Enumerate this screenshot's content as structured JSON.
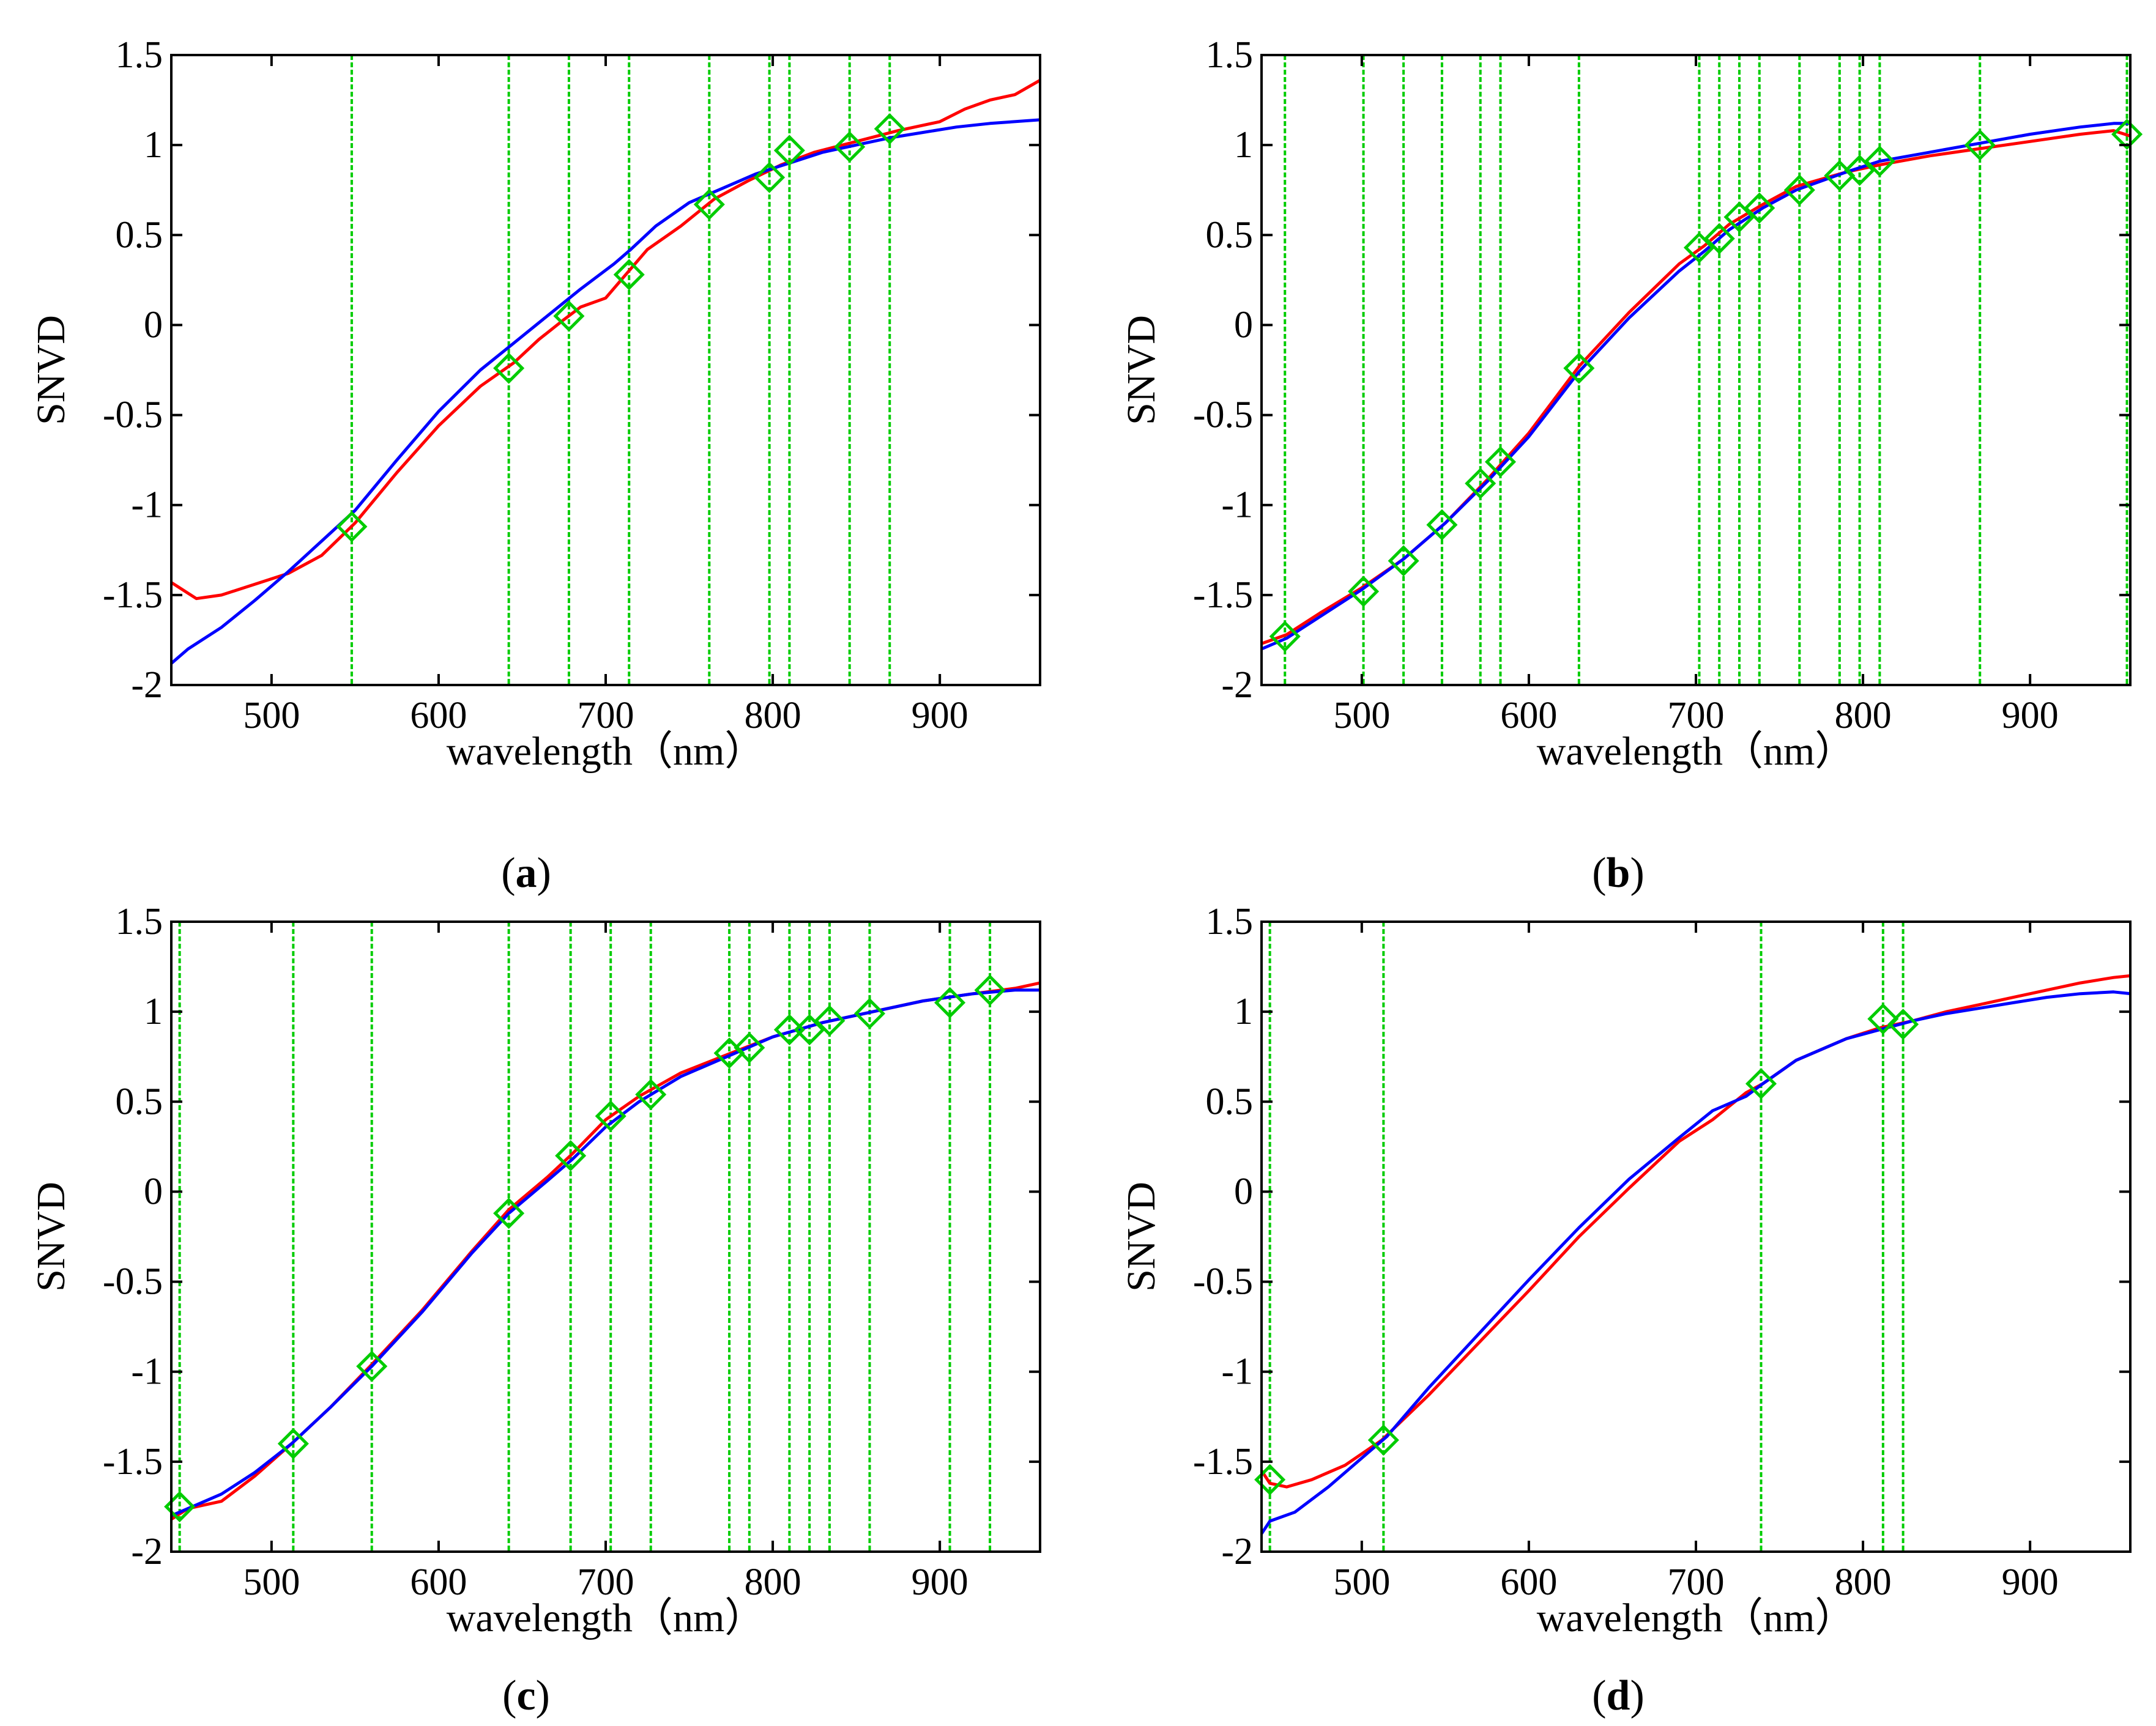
{
  "figure": {
    "panels": [
      {
        "id": "a",
        "caption_open": "(",
        "caption_letter": "a",
        "caption_close": ")"
      },
      {
        "id": "b",
        "caption_open": "(",
        "caption_letter": "b",
        "caption_close": ")"
      },
      {
        "id": "c",
        "caption_open": "(",
        "caption_letter": "c",
        "caption_close": ")"
      },
      {
        "id": "d",
        "caption_open": "(",
        "caption_letter": "d",
        "caption_close": ")"
      }
    ]
  },
  "colors": {
    "series_red": "#ff0000",
    "series_blue": "#0000ff",
    "marker_green": "#00cc00",
    "axis": "#000000"
  },
  "chart_data": [
    {
      "panel": "a",
      "type": "line",
      "title": "",
      "xlabel": "wavelength（nm）",
      "ylabel": "SNVD",
      "xlim": [
        440,
        960
      ],
      "ylim": [
        -2,
        1.5
      ],
      "xticks": [
        500,
        600,
        700,
        800,
        900
      ],
      "yticks": [
        -2,
        -1.5,
        -1,
        -0.5,
        0,
        0.5,
        1,
        1.5
      ],
      "ytick_labels": [
        "-2",
        "-1.5",
        "-1",
        "-0.5",
        "0",
        "0.5",
        "1",
        "1.5"
      ],
      "grid": false,
      "series": [
        {
          "name": "red",
          "color": "#ff0000",
          "x": [
            440,
            445,
            455,
            470,
            490,
            510,
            530,
            550,
            575,
            600,
            625,
            645,
            660,
            675,
            685,
            700,
            712,
            725,
            745,
            765,
            785,
            805,
            825,
            850,
            875,
            900,
            915,
            930,
            945,
            960
          ],
          "y": [
            -1.43,
            -1.46,
            -1.52,
            -1.5,
            -1.44,
            -1.38,
            -1.28,
            -1.1,
            -0.82,
            -0.56,
            -0.34,
            -0.21,
            -0.08,
            0.03,
            0.1,
            0.15,
            0.28,
            0.42,
            0.55,
            0.7,
            0.8,
            0.89,
            0.96,
            1.02,
            1.08,
            1.13,
            1.2,
            1.25,
            1.28,
            1.36
          ]
        },
        {
          "name": "blue",
          "color": "#0000ff",
          "x": [
            440,
            450,
            470,
            490,
            510,
            530,
            550,
            575,
            600,
            625,
            645,
            665,
            685,
            705,
            715,
            730,
            750,
            770,
            790,
            810,
            830,
            850,
            870,
            890,
            910,
            930,
            960
          ],
          "y": [
            -1.88,
            -1.8,
            -1.68,
            -1.53,
            -1.37,
            -1.2,
            -1.03,
            -0.75,
            -0.48,
            -0.25,
            -0.1,
            0.05,
            0.2,
            0.34,
            0.42,
            0.55,
            0.68,
            0.76,
            0.84,
            0.9,
            0.96,
            1.0,
            1.04,
            1.07,
            1.1,
            1.12,
            1.14
          ]
        }
      ],
      "selected_wavelengths": [
        548,
        642,
        678,
        714,
        762,
        798,
        810,
        846,
        870
      ],
      "marker_values": [
        -1.12,
        -0.24,
        0.05,
        0.28,
        0.67,
        0.82,
        0.97,
        0.99,
        1.09
      ]
    },
    {
      "panel": "b",
      "type": "line",
      "title": "",
      "xlabel": "wavelength（nm）",
      "ylabel": "SNVD",
      "xlim": [
        440,
        960
      ],
      "ylim": [
        -2,
        1.5
      ],
      "xticks": [
        500,
        600,
        700,
        800,
        900
      ],
      "yticks": [
        -2,
        -1.5,
        -1,
        -0.5,
        0,
        0.5,
        1,
        1.5
      ],
      "ytick_labels": [
        "-2",
        "-1.5",
        "-1",
        "-0.5",
        "0",
        "0.5",
        "1",
        "1.5"
      ],
      "grid": false,
      "series": [
        {
          "name": "red",
          "color": "#ff0000",
          "x": [
            440,
            455,
            475,
            500,
            525,
            550,
            575,
            600,
            630,
            660,
            690,
            705,
            720,
            740,
            760,
            790,
            810,
            840,
            870,
            900,
            930,
            950,
            960
          ],
          "y": [
            -1.77,
            -1.72,
            -1.6,
            -1.46,
            -1.3,
            -1.1,
            -0.86,
            -0.6,
            -0.23,
            0.07,
            0.34,
            0.44,
            0.56,
            0.67,
            0.77,
            0.85,
            0.89,
            0.94,
            0.98,
            1.02,
            1.06,
            1.08,
            1.05
          ]
        },
        {
          "name": "blue",
          "color": "#0000ff",
          "x": [
            440,
            455,
            475,
            500,
            525,
            550,
            575,
            600,
            630,
            660,
            690,
            705,
            720,
            740,
            760,
            790,
            810,
            840,
            870,
            900,
            930,
            950,
            960
          ],
          "y": [
            -1.8,
            -1.74,
            -1.62,
            -1.47,
            -1.3,
            -1.1,
            -0.87,
            -0.62,
            -0.26,
            0.04,
            0.3,
            0.41,
            0.53,
            0.65,
            0.75,
            0.85,
            0.91,
            0.96,
            1.01,
            1.06,
            1.1,
            1.12,
            1.12
          ]
        }
      ],
      "selected_wavelengths": [
        454,
        501,
        525,
        548,
        571,
        583,
        630,
        702,
        714,
        726,
        738,
        762,
        786,
        798,
        810,
        870,
        958
      ],
      "marker_values": [
        -1.73,
        -1.48,
        -1.31,
        -1.11,
        -0.88,
        -0.76,
        -0.24,
        0.43,
        0.48,
        0.6,
        0.65,
        0.75,
        0.83,
        0.86,
        0.91,
        1.0,
        1.06
      ]
    },
    {
      "panel": "c",
      "type": "line",
      "title": "",
      "xlabel": "wavelength（nm）",
      "ylabel": "SNVD",
      "xlim": [
        440,
        960
      ],
      "ylim": [
        -2,
        1.5
      ],
      "xticks": [
        500,
        600,
        700,
        800,
        900
      ],
      "yticks": [
        -2,
        -1.5,
        -1,
        -0.5,
        0,
        0.5,
        1,
        1.5
      ],
      "ytick_labels": [
        "-2",
        "-1.5",
        "-1",
        "-0.5",
        "0",
        "0.5",
        "1",
        "1.5"
      ],
      "grid": false,
      "series": [
        {
          "name": "red",
          "color": "#ff0000",
          "x": [
            440,
            450,
            470,
            490,
            512,
            535,
            560,
            590,
            620,
            642,
            665,
            680,
            700,
            720,
            745,
            775,
            800,
            830,
            860,
            890,
            920,
            945,
            960
          ],
          "y": [
            -1.82,
            -1.76,
            -1.72,
            -1.58,
            -1.4,
            -1.2,
            -0.96,
            -0.66,
            -0.33,
            -0.1,
            0.08,
            0.21,
            0.4,
            0.53,
            0.66,
            0.77,
            0.86,
            0.94,
            1.0,
            1.06,
            1.1,
            1.13,
            1.16
          ]
        },
        {
          "name": "blue",
          "color": "#0000ff",
          "x": [
            440,
            450,
            470,
            490,
            512,
            535,
            560,
            590,
            620,
            642,
            665,
            680,
            700,
            720,
            745,
            775,
            800,
            830,
            860,
            890,
            920,
            945,
            960
          ],
          "y": [
            -1.8,
            -1.76,
            -1.68,
            -1.56,
            -1.4,
            -1.2,
            -0.97,
            -0.67,
            -0.34,
            -0.12,
            0.06,
            0.18,
            0.36,
            0.5,
            0.64,
            0.76,
            0.86,
            0.94,
            1.0,
            1.06,
            1.1,
            1.12,
            1.12
          ]
        }
      ],
      "selected_wavelengths": [
        445,
        513,
        560,
        642,
        679,
        703,
        727,
        774,
        786,
        810,
        822,
        834,
        858,
        906,
        930
      ],
      "marker_values": [
        -1.75,
        -1.4,
        -0.97,
        -0.12,
        0.2,
        0.42,
        0.54,
        0.77,
        0.8,
        0.9,
        0.9,
        0.95,
        0.99,
        1.05,
        1.12
      ]
    },
    {
      "panel": "d",
      "type": "line",
      "title": "",
      "xlabel": "wavelength（nm）",
      "ylabel": "SNVD",
      "xlim": [
        440,
        960
      ],
      "ylim": [
        -2,
        1.5
      ],
      "xticks": [
        500,
        600,
        700,
        800,
        900
      ],
      "yticks": [
        -2,
        -1.5,
        -1,
        -0.5,
        0,
        0.5,
        1,
        1.5
      ],
      "ytick_labels": [
        "-2",
        "-1.5",
        "-1",
        "-0.5",
        "0",
        "0.5",
        "1",
        "1.5"
      ],
      "grid": false,
      "series": [
        {
          "name": "red",
          "color": "#ff0000",
          "x": [
            440,
            445,
            455,
            470,
            490,
            512,
            540,
            570,
            600,
            630,
            660,
            690,
            710,
            730,
            740,
            760,
            790,
            810,
            830,
            850,
            870,
            890,
            910,
            930,
            950,
            960
          ],
          "y": [
            -1.55,
            -1.62,
            -1.64,
            -1.6,
            -1.52,
            -1.38,
            -1.13,
            -0.84,
            -0.55,
            -0.25,
            0.02,
            0.28,
            0.4,
            0.55,
            0.6,
            0.73,
            0.85,
            0.91,
            0.95,
            1.0,
            1.04,
            1.08,
            1.12,
            1.16,
            1.19,
            1.2
          ]
        },
        {
          "name": "blue",
          "color": "#0000ff",
          "x": [
            440,
            445,
            460,
            480,
            500,
            515,
            540,
            570,
            600,
            630,
            660,
            690,
            710,
            730,
            740,
            760,
            790,
            810,
            830,
            850,
            870,
            890,
            910,
            930,
            950,
            960
          ],
          "y": [
            -1.9,
            -1.83,
            -1.78,
            -1.64,
            -1.48,
            -1.36,
            -1.09,
            -0.79,
            -0.49,
            -0.2,
            0.07,
            0.3,
            0.45,
            0.53,
            0.6,
            0.73,
            0.85,
            0.9,
            0.95,
            0.99,
            1.02,
            1.05,
            1.08,
            1.1,
            1.11,
            1.1
          ]
        }
      ],
      "selected_wavelengths": [
        445,
        513,
        739,
        812,
        824
      ],
      "marker_values": [
        -1.6,
        -1.38,
        0.6,
        0.96,
        0.93
      ]
    }
  ]
}
